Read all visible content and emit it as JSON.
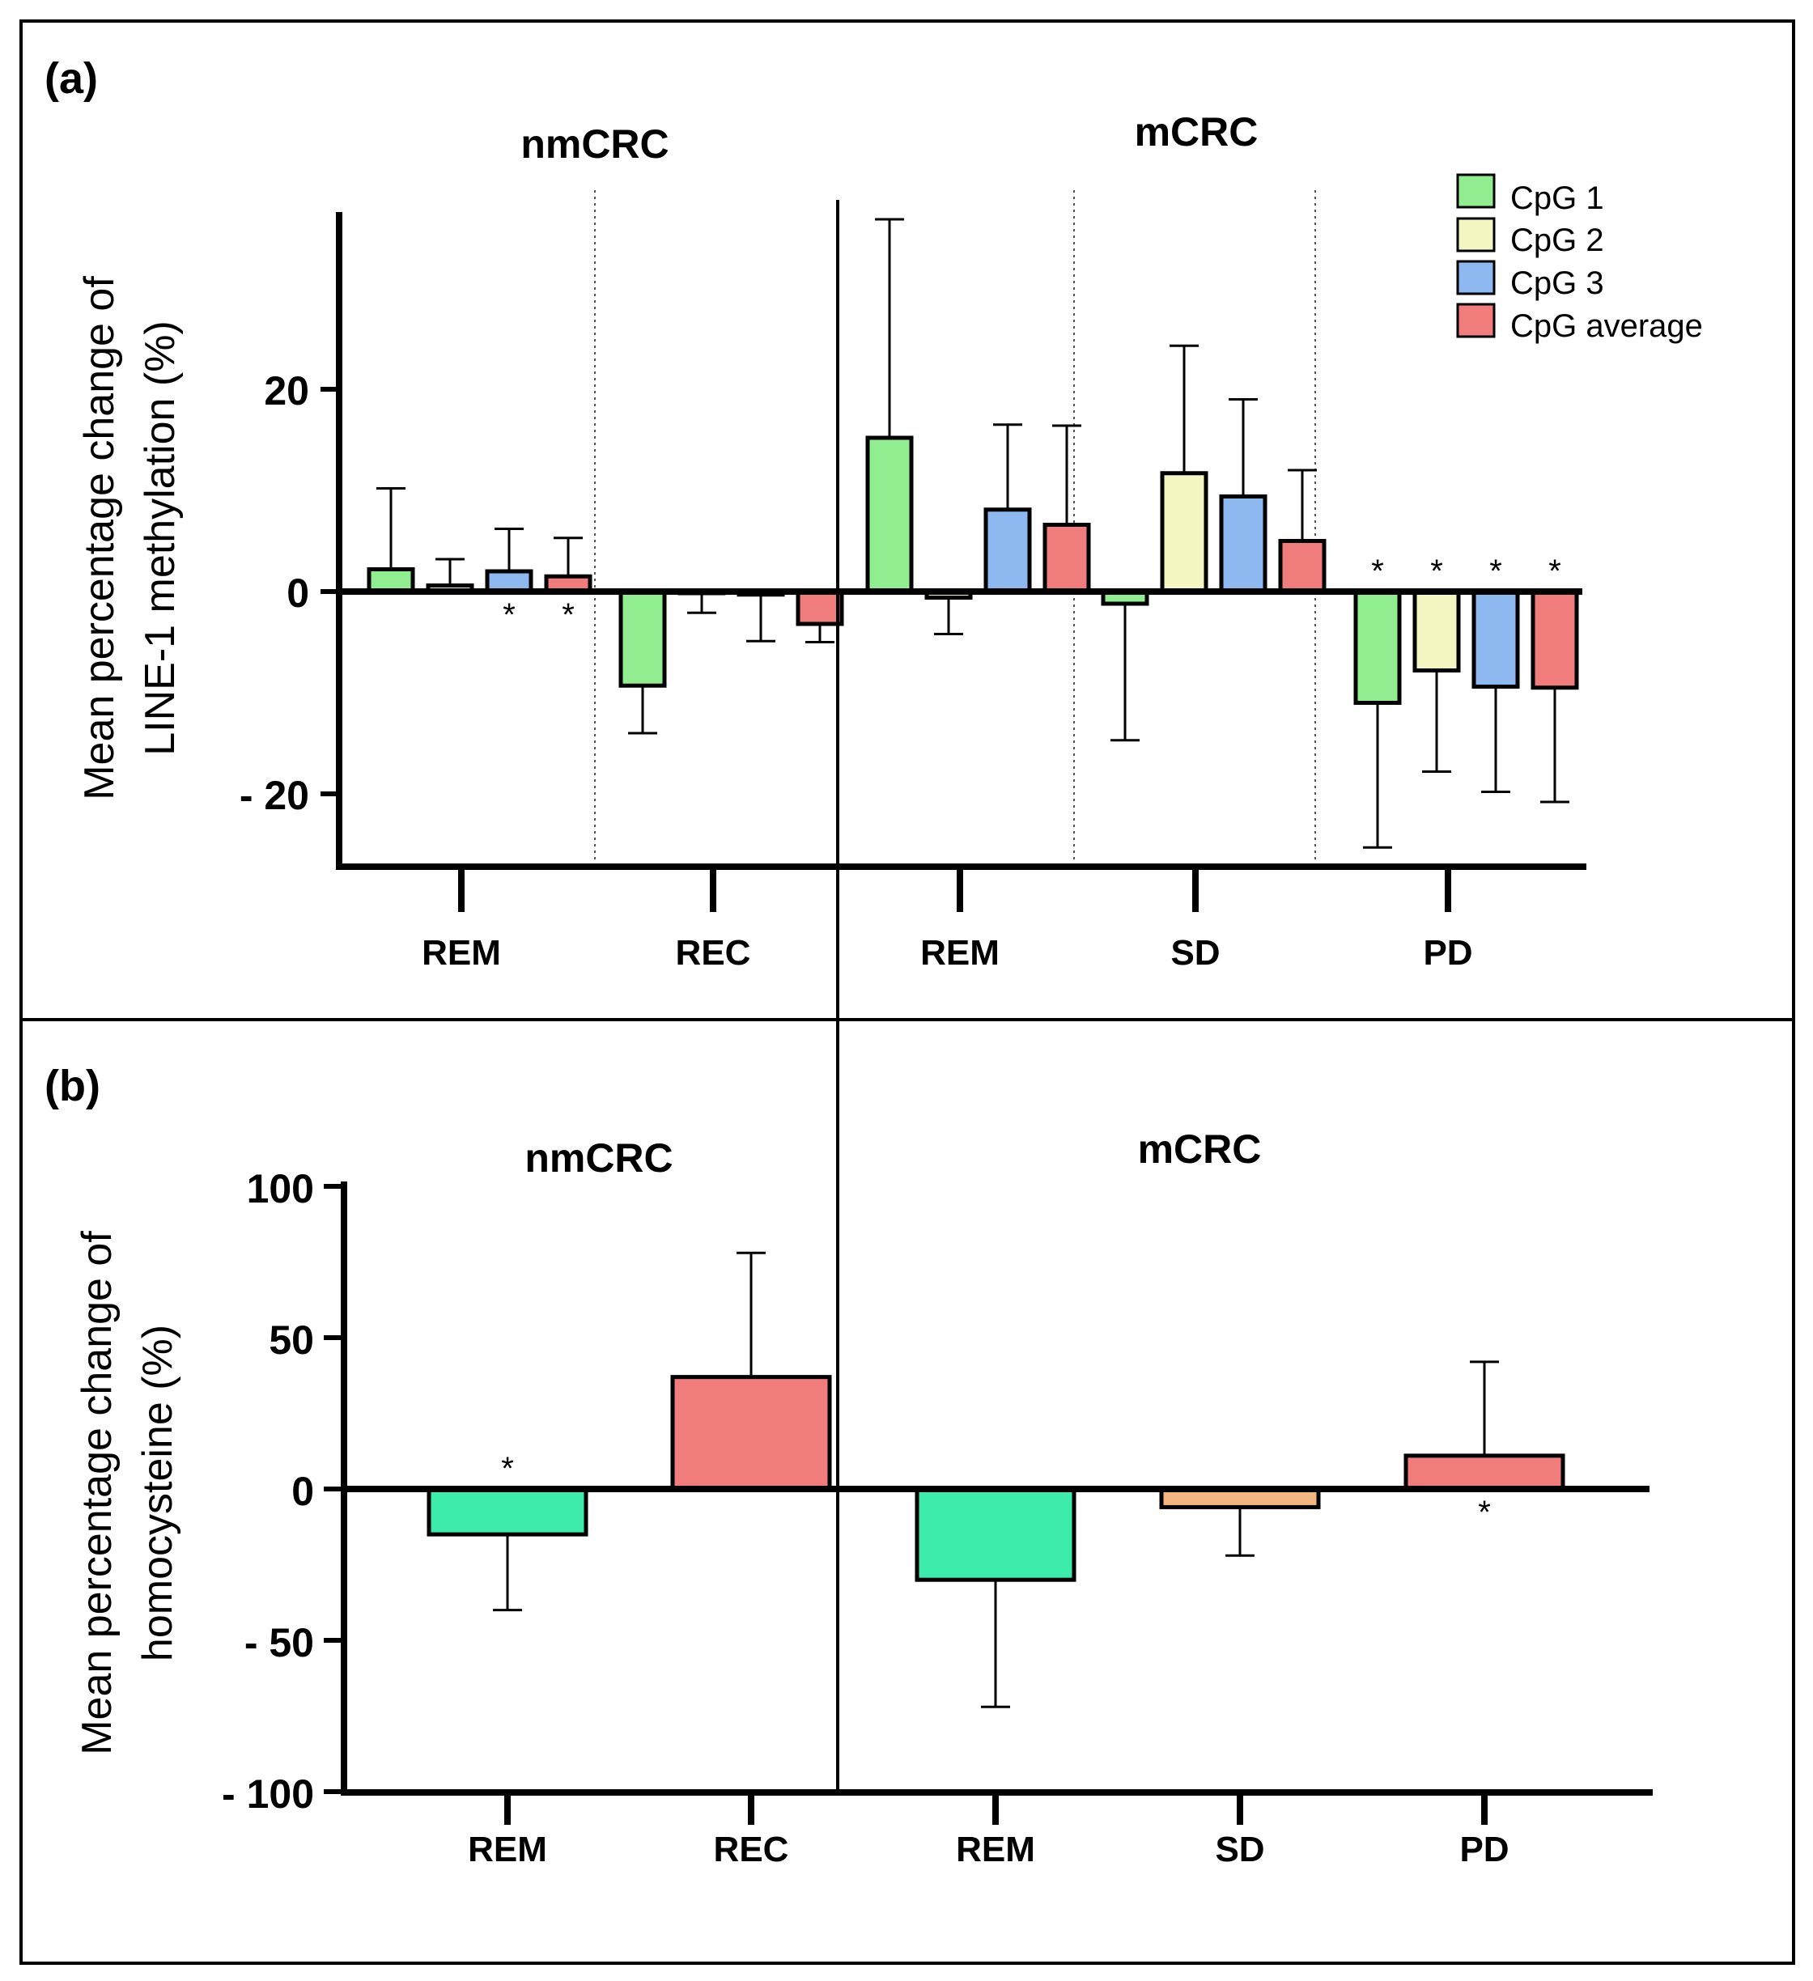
{
  "figure": {
    "panel_a_label": "(a)",
    "panel_b_label": "(b)"
  },
  "colors": {
    "cpg1": "#90EE90",
    "cpg2": "#F5F7C2",
    "cpg3": "#8DB8F0",
    "cpgavg": "#F07C7C",
    "rem_teal": "#3DEBAA",
    "sd_orange": "#F2B680",
    "axis": "#000000"
  },
  "chart_data": [
    {
      "panel": "a",
      "type": "bar",
      "ylabel_line1": "Mean percentage change of",
      "ylabel_line2": "LINE-1 methylation (%)",
      "ylim": [
        -27,
        37
      ],
      "yticks": [
        20,
        0,
        -20
      ],
      "ytick_labels": [
        "20",
        "0",
        "- 20"
      ],
      "groups": [
        {
          "name": "nmCRC",
          "categories": [
            "REM",
            "REC"
          ]
        },
        {
          "name": "mCRC",
          "categories": [
            "REM",
            "SD",
            "PD"
          ]
        }
      ],
      "categories": [
        "REM",
        "REC",
        "REM",
        "SD",
        "PD"
      ],
      "legend": {
        "position": "top-right",
        "entries": [
          "CpG 1",
          "CpG 2",
          "CpG 3",
          "CpG average"
        ]
      },
      "series": [
        {
          "name": "CpG 1",
          "values": [
            2.2,
            -9.3,
            15.2,
            -1.2,
            -11.0
          ],
          "errors": [
            8.0,
            4.7,
            21.6,
            13.5,
            14.3
          ],
          "sig": [
            "",
            "",
            "",
            "",
            "*"
          ]
        },
        {
          "name": "CpG 2",
          "values": [
            0.6,
            -0.1,
            -0.6,
            11.7,
            -7.8
          ],
          "errors": [
            2.6,
            2.0,
            3.6,
            12.6,
            10.0
          ],
          "sig": [
            "",
            "",
            "",
            "",
            "*"
          ]
        },
        {
          "name": "CpG 3",
          "values": [
            2.0,
            -0.3,
            8.1,
            9.4,
            -9.4
          ],
          "errors": [
            4.2,
            4.6,
            8.4,
            9.6,
            10.4
          ],
          "sig": [
            "*",
            "",
            "",
            "",
            "*"
          ]
        },
        {
          "name": "CpG average",
          "values": [
            1.5,
            -3.2,
            6.6,
            5.0,
            -9.5
          ],
          "errors": [
            3.8,
            1.8,
            9.8,
            7.0,
            11.3
          ],
          "sig": [
            "*",
            "",
            "",
            "",
            "*"
          ]
        }
      ]
    },
    {
      "panel": "b",
      "type": "bar",
      "ylabel_line1": "Mean percentage change of",
      "ylabel_line2": "homocysteine (%)",
      "ylim": [
        -100,
        100
      ],
      "yticks": [
        100,
        50,
        0,
        -50,
        -100
      ],
      "ytick_labels": [
        "100",
        "50",
        "0",
        "- 50",
        "- 100"
      ],
      "groups": [
        {
          "name": "nmCRC",
          "categories": [
            "REM",
            "REC"
          ]
        },
        {
          "name": "mCRC",
          "categories": [
            "REM",
            "SD",
            "PD"
          ]
        }
      ],
      "categories": [
        "REM",
        "REC",
        "REM",
        "SD",
        "PD"
      ],
      "values": [
        -15,
        37,
        -30,
        -6,
        11
      ],
      "errors": [
        25,
        41,
        42,
        16,
        31
      ],
      "sig": [
        "*",
        "",
        "",
        "",
        "*"
      ],
      "bar_colors": [
        "#3DEBAA",
        "#F07C7C",
        "#3DEBAA",
        "#F2B680",
        "#F07C7C"
      ]
    }
  ]
}
